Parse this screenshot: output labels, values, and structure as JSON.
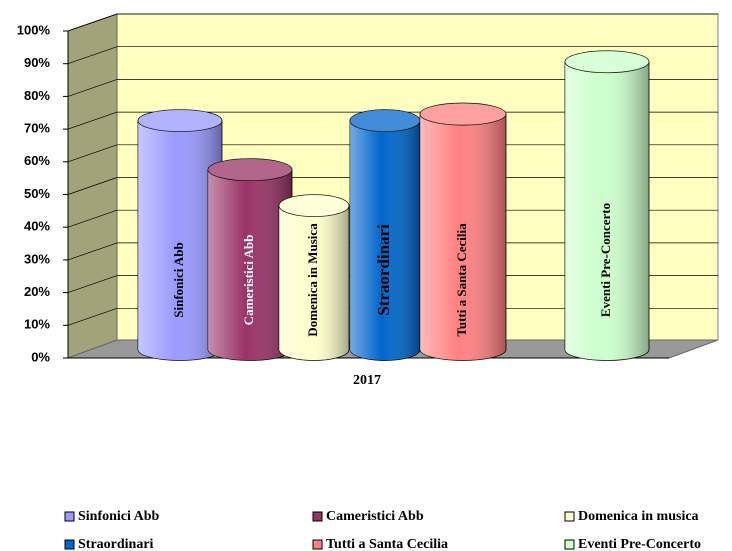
{
  "chart_data": {
    "type": "bar",
    "categories": [
      "2017"
    ],
    "series": [
      {
        "name": "Sinfonici Abb",
        "label": "Sinfonici Abb",
        "color": "#9999ff",
        "values": [
          70
        ]
      },
      {
        "name": "Cameristici Abb",
        "label": "Cameristici Abb",
        "color": "#993366",
        "values": [
          55
        ]
      },
      {
        "name": "Domenica in musica",
        "label": "Domenica in Musica",
        "color": "#ffffcc",
        "values": [
          44
        ]
      },
      {
        "name": "Straordinari",
        "label": "Straordinari",
        "color": "#0066cc",
        "values": [
          70
        ]
      },
      {
        "name": "Tutti a Santa Cecilia",
        "label": "Tutti a Santa Cecilia",
        "color": "#ff8080",
        "values": [
          72
        ]
      },
      {
        "name": "Eventi Pre-Concerto",
        "label": "Eventi Pre-Concerto",
        "color": "#ccffcc",
        "values": [
          88
        ]
      }
    ],
    "ylim": [
      0,
      100
    ],
    "yticks": [
      {
        "value": 0,
        "label": "0%"
      },
      {
        "value": 10,
        "label": "10%"
      },
      {
        "value": 20,
        "label": "20%"
      },
      {
        "value": 30,
        "label": "30%"
      },
      {
        "value": 40,
        "label": "40%"
      },
      {
        "value": 50,
        "label": "50%"
      },
      {
        "value": 60,
        "label": "60%"
      },
      {
        "value": 70,
        "label": "70%"
      },
      {
        "value": 80,
        "label": "80%"
      },
      {
        "value": 90,
        "label": "90%"
      },
      {
        "value": 100,
        "label": "100%"
      }
    ],
    "grid": true,
    "legend": "bottom"
  }
}
